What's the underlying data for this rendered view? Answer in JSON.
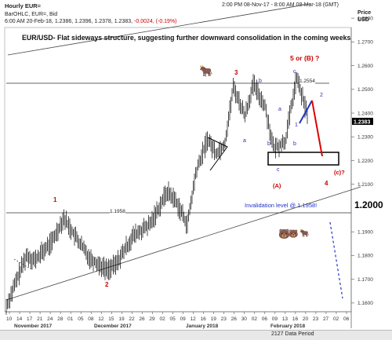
{
  "header": {
    "window_title": "Hourly EUR=",
    "status_line": "2:00 PM 08-Nov-17 - 8:00 AM 08-Mar-18 (GMT)",
    "instrument_line": "BarOHLC, EUR=, Bid",
    "ohlc_prefix": "6:00 AM 20-Feb-18, 1.2386, 1.2396, 1.2378, 1.2383,",
    "change_text": "-0.0024, (-0.19%)",
    "price_label_1": "Price",
    "price_label_2": "USD"
  },
  "colors": {
    "candles": "#000000",
    "wave_labels": "#cc0000",
    "sub_labels": "#2b2bb8",
    "projection_up": "#2233cc",
    "projection_down": "#dd0000",
    "invalidation": "#2233cc"
  },
  "chart_data": {
    "type": "candlestick",
    "title": "EUR/USD-  Flat  sideways structure, suggesting further downward  consolidation in the coming weeks",
    "yaxis": {
      "ticks": [
        "1.2800",
        "1.2700",
        "1.2600",
        "1.2500",
        "1.2400",
        "1.2300",
        "1.2200",
        "1.2100",
        "1.2000",
        "1.1900",
        "1.1800",
        "1.1700",
        "1.1600"
      ],
      "ylim": [
        1.155,
        1.285
      ],
      "last_price": "1.2383",
      "big_tick": "1.2000"
    },
    "xaxis": {
      "day_ticks": [
        "10",
        "14",
        "17",
        "21",
        "24",
        "28",
        "01",
        "05",
        "08",
        "12",
        "15",
        "19",
        "22",
        "26",
        "29",
        "02",
        "05",
        "09",
        "12",
        "16",
        "19",
        "23",
        "26",
        "30",
        "02",
        "06",
        "09",
        "13",
        "16",
        "20",
        "23",
        "27",
        "02",
        "06"
      ],
      "months": [
        "November 2017",
        "December 2017",
        "January 2018",
        "February 2018"
      ]
    },
    "levels": [
      {
        "price": 1.2554,
        "label": "1.2554"
      },
      {
        "price": 1.1958,
        "label": "1.1958"
      }
    ],
    "wave_labels": [
      "1",
      "2",
      "3",
      "(A)",
      "5 or (B) ?",
      "4",
      "(c)?"
    ],
    "sub_labels": [
      "a",
      "b",
      "c",
      "a",
      "b",
      "c",
      "1",
      "2",
      "b"
    ],
    "annotation": "Invalidation level @ 1.1958!",
    "key": [
      {
        "x": "2017-11-07",
        "close": 1.1585
      },
      {
        "x": "2017-11-14",
        "close": 1.18
      },
      {
        "x": "2017-11-17",
        "close": 1.178
      },
      {
        "x": "2017-11-23",
        "close": 1.186
      },
      {
        "x": "2017-11-27",
        "close": 1.196
      },
      {
        "x": "2017-12-01",
        "close": 1.188
      },
      {
        "x": "2017-12-06",
        "close": 1.179
      },
      {
        "x": "2017-12-12",
        "close": 1.174
      },
      {
        "x": "2017-12-15",
        "close": 1.176
      },
      {
        "x": "2017-12-21",
        "close": 1.188
      },
      {
        "x": "2017-12-27",
        "close": 1.193
      },
      {
        "x": "2018-01-02",
        "close": 1.207
      },
      {
        "x": "2018-01-05",
        "close": 1.203
      },
      {
        "x": "2018-01-09",
        "close": 1.193
      },
      {
        "x": "2018-01-12",
        "close": 1.215
      },
      {
        "x": "2018-01-16",
        "close": 1.229
      },
      {
        "x": "2018-01-19",
        "close": 1.223
      },
      {
        "x": "2018-01-22",
        "close": 1.227
      },
      {
        "x": "2018-01-25",
        "close": 1.251
      },
      {
        "x": "2018-01-29",
        "close": 1.239
      },
      {
        "x": "2018-02-01",
        "close": 1.252
      },
      {
        "x": "2018-02-05",
        "close": 1.243
      },
      {
        "x": "2018-02-08",
        "close": 1.225
      },
      {
        "x": "2018-02-12",
        "close": 1.228
      },
      {
        "x": "2018-02-16",
        "close": 1.255
      },
      {
        "x": "2018-02-20",
        "close": 1.2383
      }
    ]
  },
  "footer": {
    "period_label": "2127 Data Period"
  }
}
